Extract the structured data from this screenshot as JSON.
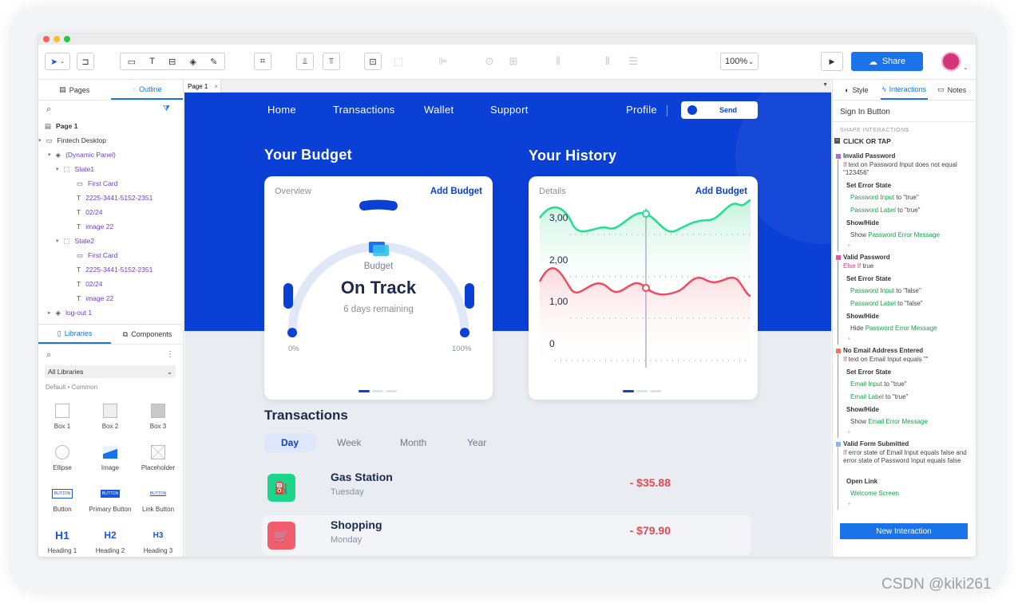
{
  "toolbar": {
    "zoom": "100%",
    "share": "Share"
  },
  "left": {
    "tabs": [
      "Pages",
      "Outline"
    ],
    "tree": [
      {
        "label": "Page 1",
        "kind": "page"
      },
      {
        "label": "Fintech Desktop",
        "kind": "folder"
      },
      {
        "label": "(Dynamic Panel)",
        "kind": "layers"
      },
      {
        "label": "State1",
        "kind": "state"
      },
      {
        "label": "First Card",
        "kind": "rect"
      },
      {
        "label": "2225-3441-5152-2351",
        "kind": "text"
      },
      {
        "label": "02/24",
        "kind": "text"
      },
      {
        "label": "image 22",
        "kind": "text"
      },
      {
        "label": "State2",
        "kind": "state"
      },
      {
        "label": "First Card",
        "kind": "rect"
      },
      {
        "label": "2225-3441-5152-2351",
        "kind": "text"
      },
      {
        "label": "02/24",
        "kind": "text"
      },
      {
        "label": "image 22",
        "kind": "text"
      },
      {
        "label": "log-out 1",
        "kind": "layers"
      }
    ],
    "lib_tabs": [
      "Libraries",
      "Components"
    ],
    "lib_select": "All Libraries",
    "lib_group": "Default • Common",
    "widgets": [
      "Box 1",
      "Box 2",
      "Box 3",
      "Ellipse",
      "Image",
      "Placeholder",
      "Button",
      "Primary Button",
      "Link Button",
      "Heading 1",
      "Heading 2",
      "Heading 3"
    ],
    "widget_glyphs": [
      "BUTTON",
      "BUTTON",
      "BUTTON",
      "H1",
      "H2",
      "H3"
    ]
  },
  "canvas": {
    "page_tab": "Page 1",
    "nav": [
      "Home",
      "Transactions",
      "Wallet",
      "Support"
    ],
    "profile": "Profile",
    "send": "Send",
    "budget_title": "Your Budget",
    "history_title": "Your History",
    "overview": "Overview",
    "details": "Details",
    "add_budget": "Add Budget",
    "budget_label": "Budget",
    "budget_status": "On Track",
    "days_remaining": "6 days remaining",
    "gauge_min": "0%",
    "gauge_max": "100%",
    "y_ticks": [
      "3,00",
      "2,00",
      "1,00",
      "0"
    ],
    "transactions_title": "Transactions",
    "periods": [
      "Day",
      "Week",
      "Month",
      "Year"
    ],
    "transactions": [
      {
        "title": "Gas Station",
        "day": "Tuesday",
        "amount": "- $35.88",
        "color": "#1bd68a"
      },
      {
        "title": "Shopping",
        "day": "Monday",
        "amount": "- $79.90",
        "color": "#f25d6e"
      }
    ]
  },
  "right": {
    "tabs": [
      "Style",
      "Interactions",
      "Notes"
    ],
    "widget_name": "Sign In Button",
    "section": "SHAPE INTERACTIONS",
    "event": "CLICK OR TAP",
    "cases": [
      {
        "name": "Invalid Password",
        "cond_kw": "If",
        "cond": " text on Password Input does not equal \"123456\"",
        "color": "#b06ad6",
        "actions": [
          {
            "title": "Set Error State",
            "lines": [
              [
                "Password Input",
                " to \"true\""
              ],
              [
                "Password Label",
                " to \"true\""
              ]
            ]
          },
          {
            "title": "Show/Hide",
            "lines": [
              [
                "Show ",
                "Password Error Message"
              ]
            ]
          }
        ]
      },
      {
        "name": "Valid Password",
        "cond_kw": "Else If",
        "cond": " true",
        "color": "#e8559b",
        "actions": [
          {
            "title": "Set Error State",
            "lines": [
              [
                "Password Input",
                " to \"false\""
              ],
              [
                "Password Label",
                " to \"false\""
              ]
            ]
          },
          {
            "title": "Show/Hide",
            "lines": [
              [
                "Hide ",
                "Password Error Message"
              ]
            ]
          }
        ]
      },
      {
        "name": "No Email Address Entered",
        "cond_kw": "If",
        "cond": " text on Email Input equals \"\"",
        "color": "#f2755c",
        "actions": [
          {
            "title": "Set Error State",
            "lines": [
              [
                "Email Input",
                " to \"true\""
              ],
              [
                "Email Label",
                " to \"true\""
              ]
            ]
          },
          {
            "title": "Show/Hide",
            "lines": [
              [
                "Show ",
                "Email Error Message"
              ]
            ]
          }
        ]
      },
      {
        "name": "Valid Form Submitted",
        "cond_kw": "If",
        "cond": " error state of Email Input equals false and error state of Password Input equals false",
        "color": "#8ab6ee",
        "actions": [
          {
            "title": "Open Link",
            "lines": [
              [
                "Welcome Screen",
                ""
              ]
            ]
          }
        ]
      }
    ],
    "new_interaction": "New Interaction"
  },
  "watermark": "CSDN @kiki261"
}
